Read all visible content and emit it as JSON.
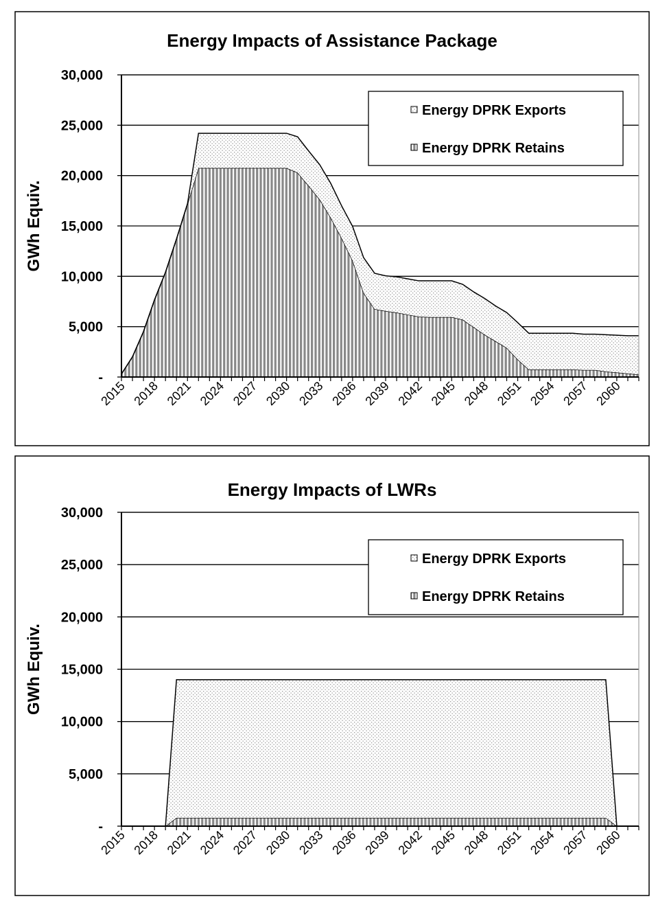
{
  "chart_data": [
    {
      "type": "area",
      "stacked": true,
      "title": "Energy Impacts of Assistance Package",
      "xlabel": "",
      "ylabel": "GWh Equiv.",
      "ylim": [
        0,
        30000
      ],
      "yticks": [
        0,
        5000,
        10000,
        15000,
        20000,
        25000,
        30000
      ],
      "ytick_labels": [
        "-",
        "5,000",
        "10,000",
        "15,000",
        "20,000",
        "25,000",
        "30,000"
      ],
      "x": [
        2015,
        2016,
        2017,
        2018,
        2019,
        2020,
        2021,
        2022,
        2023,
        2024,
        2025,
        2026,
        2027,
        2028,
        2029,
        2030,
        2031,
        2032,
        2033,
        2034,
        2035,
        2036,
        2037,
        2038,
        2039,
        2040,
        2041,
        2042,
        2043,
        2044,
        2045,
        2046,
        2047,
        2048,
        2049,
        2050,
        2051,
        2052,
        2053,
        2054,
        2055,
        2056,
        2057,
        2058,
        2059,
        2060,
        2061,
        2062
      ],
      "xtick_labels": [
        "2015",
        "2018",
        "2021",
        "2024",
        "2027",
        "2030",
        "2033",
        "2036",
        "2039",
        "2042",
        "2045",
        "2048",
        "2051",
        "2054",
        "2057",
        "2060"
      ],
      "grid": "horizontal",
      "legend_position": "top-right",
      "series": [
        {
          "name": "Energy DPRK Retains",
          "pattern": "vertical-stripes",
          "values": [
            300,
            2000,
            4500,
            7650,
            10400,
            13700,
            17200,
            20750,
            20750,
            20750,
            20750,
            20750,
            20750,
            20750,
            20750,
            20750,
            20300,
            19000,
            17650,
            15850,
            13800,
            11550,
            8350,
            6750,
            6550,
            6400,
            6200,
            6000,
            5950,
            5950,
            5950,
            5700,
            4950,
            4200,
            3550,
            2900,
            1750,
            750,
            750,
            750,
            750,
            750,
            700,
            700,
            550,
            450,
            350,
            250
          ]
        },
        {
          "name": "Energy DPRK Exports",
          "pattern": "dots",
          "values": [
            0,
            0,
            0,
            0,
            0,
            0,
            0,
            3450,
            3450,
            3450,
            3450,
            3450,
            3450,
            3450,
            3450,
            3450,
            3550,
            3450,
            3450,
            3400,
            3200,
            3400,
            3500,
            3550,
            3500,
            3550,
            3550,
            3550,
            3600,
            3600,
            3600,
            3500,
            3500,
            3600,
            3500,
            3500,
            3650,
            3600,
            3600,
            3600,
            3600,
            3600,
            3550,
            3550,
            3650,
            3700,
            3750,
            3850
          ]
        }
      ],
      "legend_order": [
        "Energy DPRK Exports",
        "Energy DPRK Retains"
      ]
    },
    {
      "type": "area",
      "stacked": true,
      "title": "Energy Impacts of LWRs",
      "xlabel": "",
      "ylabel": "GWh Equiv.",
      "ylim": [
        0,
        30000
      ],
      "yticks": [
        0,
        5000,
        10000,
        15000,
        20000,
        25000,
        30000
      ],
      "ytick_labels": [
        "-",
        "5,000",
        "10,000",
        "15,000",
        "20,000",
        "25,000",
        "30,000"
      ],
      "x": [
        2015,
        2016,
        2017,
        2018,
        2019,
        2020,
        2021,
        2022,
        2023,
        2024,
        2025,
        2026,
        2027,
        2028,
        2029,
        2030,
        2031,
        2032,
        2033,
        2034,
        2035,
        2036,
        2037,
        2038,
        2039,
        2040,
        2041,
        2042,
        2043,
        2044,
        2045,
        2046,
        2047,
        2048,
        2049,
        2050,
        2051,
        2052,
        2053,
        2054,
        2055,
        2056,
        2057,
        2058,
        2059,
        2060,
        2061,
        2062
      ],
      "xtick_labels": [
        "2015",
        "2018",
        "2021",
        "2024",
        "2027",
        "2030",
        "2033",
        "2036",
        "2039",
        "2042",
        "2045",
        "2048",
        "2051",
        "2054",
        "2057",
        "2060"
      ],
      "grid": "horizontal",
      "legend_position": "top-right",
      "series": [
        {
          "name": "Energy DPRK Retains",
          "pattern": "vertical-stripes",
          "values": [
            0,
            0,
            0,
            0,
            0,
            800,
            800,
            800,
            800,
            800,
            800,
            800,
            800,
            800,
            800,
            800,
            800,
            800,
            800,
            800,
            800,
            800,
            800,
            800,
            800,
            800,
            800,
            800,
            800,
            800,
            800,
            800,
            800,
            800,
            800,
            800,
            800,
            800,
            800,
            800,
            800,
            800,
            800,
            800,
            800,
            0,
            0,
            0
          ]
        },
        {
          "name": "Energy DPRK Exports",
          "pattern": "dots",
          "values": [
            0,
            0,
            0,
            0,
            0,
            13200,
            13200,
            13200,
            13200,
            13200,
            13200,
            13200,
            13200,
            13200,
            13200,
            13200,
            13200,
            13200,
            13200,
            13200,
            13200,
            13200,
            13200,
            13200,
            13200,
            13200,
            13200,
            13200,
            13200,
            13200,
            13200,
            13200,
            13200,
            13200,
            13200,
            13200,
            13200,
            13200,
            13200,
            13200,
            13200,
            13200,
            13200,
            13200,
            13200,
            0,
            0,
            0
          ]
        }
      ],
      "legend_order": [
        "Energy DPRK Exports",
        "Energy DPRK Retains"
      ]
    }
  ]
}
